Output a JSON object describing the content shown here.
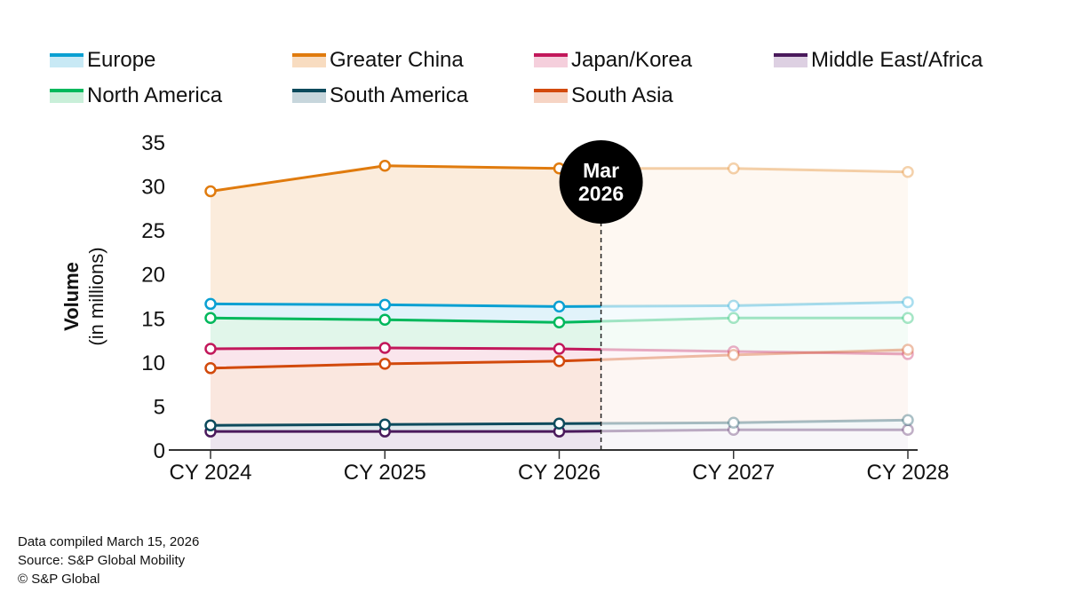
{
  "chart_data": {
    "type": "line",
    "title": "",
    "xlabel": "",
    "ylabel": "Volume",
    "ylabel_sub": "(in millions)",
    "categories": [
      "CY 2024",
      "CY 2025",
      "CY 2026",
      "CY 2027",
      "CY 2028"
    ],
    "ylim": [
      0,
      35
    ],
    "yticks": [
      0,
      5,
      10,
      15,
      20,
      25,
      30,
      35
    ],
    "ytick_labels": [
      "0",
      "5",
      "10",
      "15",
      "20",
      "25",
      "30",
      "35"
    ],
    "grid": false,
    "legend_position": "top",
    "forecast_marker": {
      "label_line1": "Mar",
      "label_line2": "2026",
      "x_position_in_years": 2026.24,
      "note": "values after this marker are shown faded (forecast)"
    },
    "series": [
      {
        "name": "Europe",
        "color": "#0aa0d2",
        "fill": "#c8e9f5",
        "values": [
          16.6,
          16.5,
          16.3,
          16.4,
          16.8
        ]
      },
      {
        "name": "Greater China",
        "color": "#e07b0e",
        "fill": "#f8dcc0",
        "values": [
          29.4,
          32.3,
          32.0,
          32.0,
          31.6
        ]
      },
      {
        "name": "Japan/Korea",
        "color": "#c2185b",
        "fill": "#f5cfdc",
        "values": [
          11.5,
          11.6,
          11.5,
          11.2,
          10.9
        ]
      },
      {
        "name": "Middle East/Africa",
        "color": "#4a1a5c",
        "fill": "#ddd0e2",
        "values": [
          2.1,
          2.1,
          2.1,
          2.3,
          2.3
        ]
      },
      {
        "name": "North America",
        "color": "#00b85c",
        "fill": "#c9efd9",
        "values": [
          15.0,
          14.8,
          14.5,
          15.0,
          15.0
        ]
      },
      {
        "name": "South America",
        "color": "#0c4a5c",
        "fill": "#c7d6dc",
        "values": [
          2.8,
          2.9,
          3.0,
          3.1,
          3.4
        ]
      },
      {
        "name": "South Asia",
        "color": "#d24a0c",
        "fill": "#f6d4c4",
        "values": [
          9.3,
          9.8,
          10.1,
          10.8,
          11.4
        ]
      }
    ]
  },
  "footer": {
    "line1": "Data compiled March 15, 2026",
    "line2": "Source: S&P Global Mobility",
    "line3": "© S&P Global"
  }
}
